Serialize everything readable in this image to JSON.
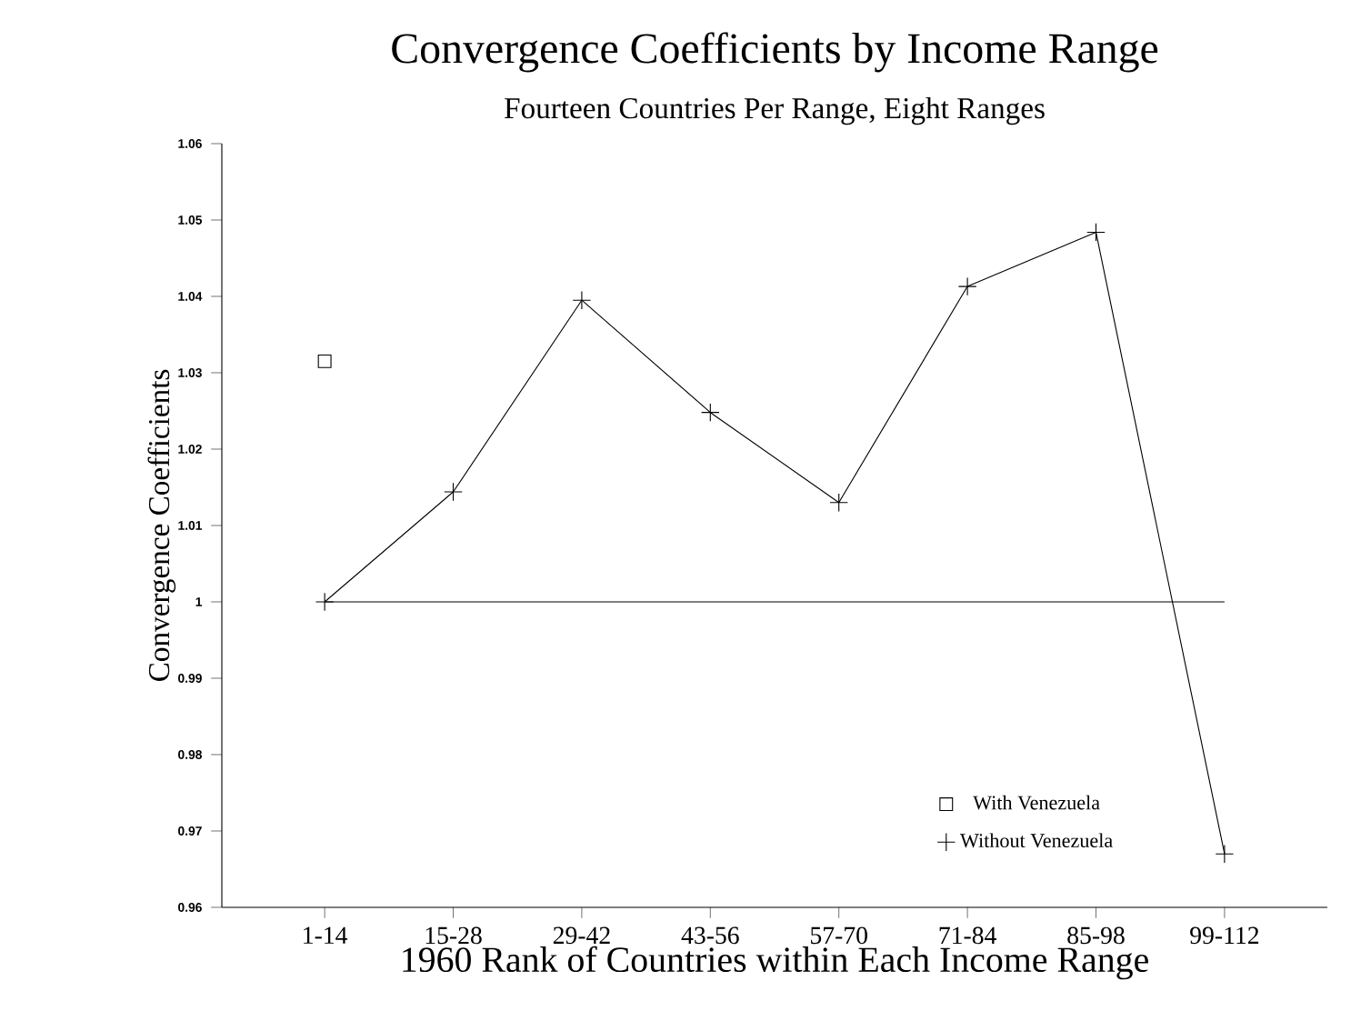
{
  "chart_data": {
    "type": "line",
    "title": "Convergence Coefficients by Income Range",
    "subtitle": "Fourteen Countries Per Range, Eight Ranges",
    "xlabel": "1960 Rank of Countries within Each Income Range",
    "ylabel": "Convergence Coefficients",
    "categories": [
      "1-14",
      "15-28",
      "29-42",
      "43-56",
      "57-70",
      "71-84",
      "85-98",
      "99-112"
    ],
    "series": [
      {
        "name": "With Venezuela",
        "type": "scatter",
        "marker": "square",
        "color": "#000000",
        "values": [
          1.0315,
          null,
          null,
          null,
          null,
          null,
          null,
          null
        ]
      },
      {
        "name": "Without Venezuela",
        "marker": "cross",
        "color": "#000000",
        "values": [
          1.0,
          1.0144,
          1.0395,
          1.0248,
          1.013,
          1.0413,
          1.0484,
          0.967
        ]
      }
    ],
    "ylim": [
      0.96,
      1.06
    ],
    "yticks": [
      0.96,
      0.97,
      0.98,
      0.99,
      1,
      1.01,
      1.02,
      1.03,
      1.04,
      1.05,
      1.06
    ],
    "ref_lines": [
      {
        "axis": "y",
        "value": 1,
        "color": "#000000"
      }
    ],
    "grid": false,
    "legend": "bottom right"
  }
}
